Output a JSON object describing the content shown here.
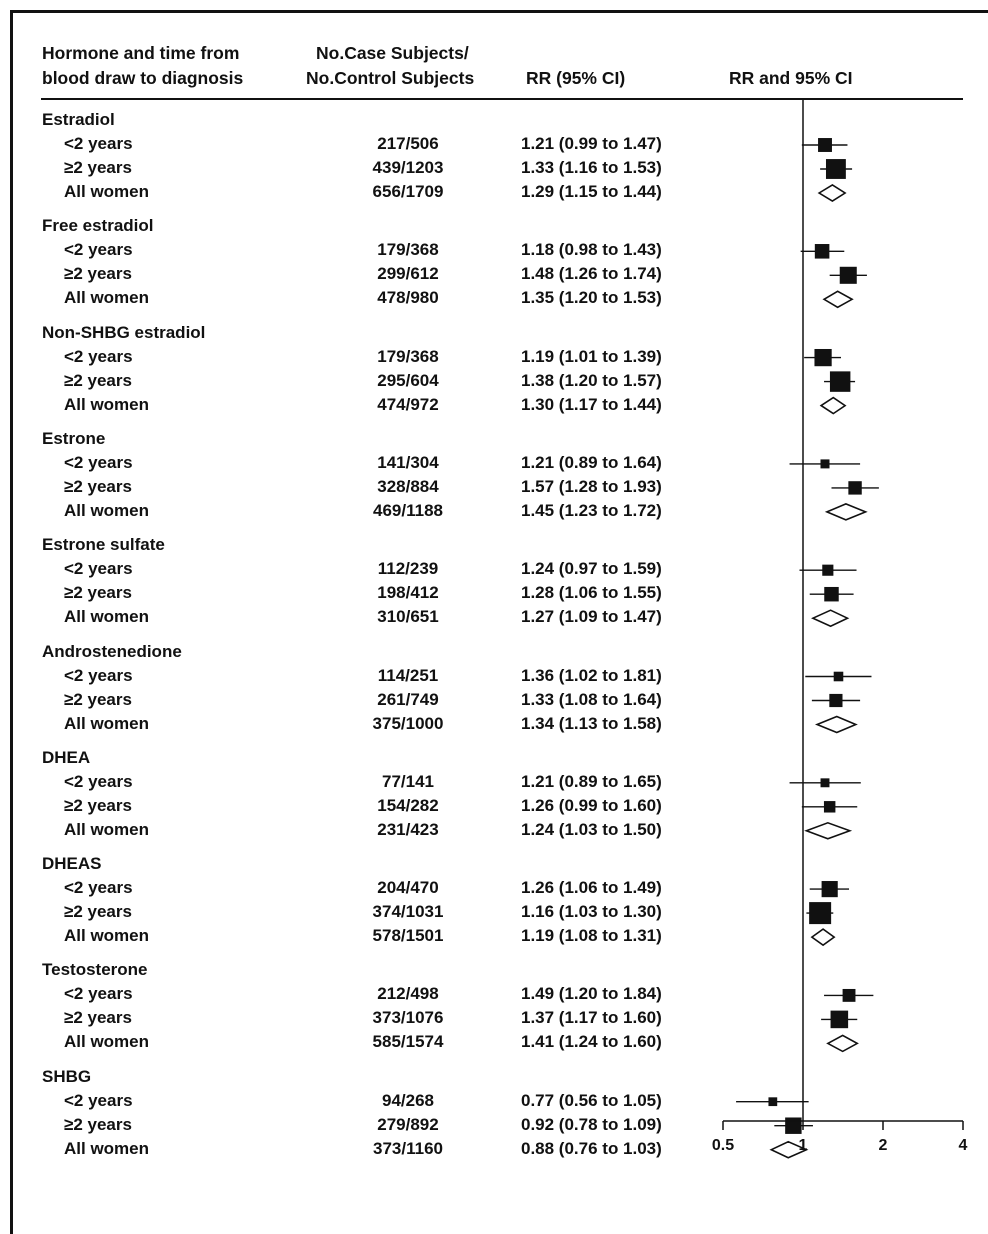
{
  "header": {
    "col1_line1": "Hormone and time from",
    "col1_line2": "blood draw to diagnosis",
    "col2_line1": "No.Case Subjects/",
    "col2_line2": "No.Control Subjects",
    "col3": "RR (95% CI)",
    "col4": "RR and 95% CI"
  },
  "chart_data": {
    "type": "forest",
    "x_axis": {
      "scale": "log",
      "range": [
        0.5,
        4
      ],
      "ticks": [
        "0.5",
        "1",
        "2",
        "4"
      ],
      "reference_line": 1
    },
    "groups": [
      {
        "name": "Estradiol",
        "rows": [
          {
            "label": "<2 years",
            "ratio": "217/506",
            "rr_text": "1.21 (0.99 to 1.47)",
            "rr": 1.21,
            "lo": 0.99,
            "hi": 1.47,
            "kind": "square"
          },
          {
            "label": "≥2 years",
            "ratio": "439/1203",
            "rr_text": "1.33 (1.16 to 1.53)",
            "rr": 1.33,
            "lo": 1.16,
            "hi": 1.53,
            "kind": "square"
          },
          {
            "label": "All women",
            "ratio": "656/1709",
            "rr_text": "1.29 (1.15 to 1.44)",
            "rr": 1.29,
            "lo": 1.15,
            "hi": 1.44,
            "kind": "diamond"
          }
        ]
      },
      {
        "name": "Free estradiol",
        "rows": [
          {
            "label": "<2 years",
            "ratio": "179/368",
            "rr_text": "1.18 (0.98 to 1.43)",
            "rr": 1.18,
            "lo": 0.98,
            "hi": 1.43,
            "kind": "square"
          },
          {
            "label": "≥2 years",
            "ratio": "299/612",
            "rr_text": "1.48 (1.26 to 1.74)",
            "rr": 1.48,
            "lo": 1.26,
            "hi": 1.74,
            "kind": "square"
          },
          {
            "label": "All women",
            "ratio": "478/980",
            "rr_text": "1.35 (1.20 to 1.53)",
            "rr": 1.35,
            "lo": 1.2,
            "hi": 1.53,
            "kind": "diamond"
          }
        ]
      },
      {
        "name": "Non-SHBG estradiol",
        "rows": [
          {
            "label": "<2 years",
            "ratio": "179/368",
            "rr_text": "1.19 (1.01 to 1.39)",
            "rr": 1.19,
            "lo": 1.01,
            "hi": 1.39,
            "kind": "square"
          },
          {
            "label": "≥2 years",
            "ratio": "295/604",
            "rr_text": "1.38 (1.20 to 1.57)",
            "rr": 1.38,
            "lo": 1.2,
            "hi": 1.57,
            "kind": "square"
          },
          {
            "label": "All women",
            "ratio": "474/972",
            "rr_text": "1.30 (1.17 to 1.44)",
            "rr": 1.3,
            "lo": 1.17,
            "hi": 1.44,
            "kind": "diamond"
          }
        ]
      },
      {
        "name": "Estrone",
        "rows": [
          {
            "label": "<2 years",
            "ratio": "141/304",
            "rr_text": "1.21 (0.89 to 1.64)",
            "rr": 1.21,
            "lo": 0.89,
            "hi": 1.64,
            "kind": "square"
          },
          {
            "label": "≥2 years",
            "ratio": "328/884",
            "rr_text": "1.57 (1.28 to 1.93)",
            "rr": 1.57,
            "lo": 1.28,
            "hi": 1.93,
            "kind": "square"
          },
          {
            "label": "All women",
            "ratio": "469/1188",
            "rr_text": "1.45 (1.23 to 1.72)",
            "rr": 1.45,
            "lo": 1.23,
            "hi": 1.72,
            "kind": "diamond"
          }
        ]
      },
      {
        "name": "Estrone sulfate",
        "rows": [
          {
            "label": "<2 years",
            "ratio": "112/239",
            "rr_text": "1.24 (0.97 to 1.59)",
            "rr": 1.24,
            "lo": 0.97,
            "hi": 1.59,
            "kind": "square"
          },
          {
            "label": "≥2 years",
            "ratio": "198/412",
            "rr_text": "1.28 (1.06 to 1.55)",
            "rr": 1.28,
            "lo": 1.06,
            "hi": 1.55,
            "kind": "square"
          },
          {
            "label": "All women",
            "ratio": "310/651",
            "rr_text": "1.27 (1.09 to 1.47)",
            "rr": 1.27,
            "lo": 1.09,
            "hi": 1.47,
            "kind": "diamond"
          }
        ]
      },
      {
        "name": "Androstenedione",
        "rows": [
          {
            "label": "<2 years",
            "ratio": "114/251",
            "rr_text": "1.36 (1.02 to 1.81)",
            "rr": 1.36,
            "lo": 1.02,
            "hi": 1.81,
            "kind": "square"
          },
          {
            "label": "≥2 years",
            "ratio": "261/749",
            "rr_text": "1.33 (1.08 to 1.64)",
            "rr": 1.33,
            "lo": 1.08,
            "hi": 1.64,
            "kind": "square"
          },
          {
            "label": "All women",
            "ratio": "375/1000",
            "rr_text": "1.34 (1.13 to 1.58)",
            "rr": 1.34,
            "lo": 1.13,
            "hi": 1.58,
            "kind": "diamond"
          }
        ]
      },
      {
        "name": "DHEA",
        "rows": [
          {
            "label": "<2 years",
            "ratio": "77/141",
            "rr_text": "1.21 (0.89 to 1.65)",
            "rr": 1.21,
            "lo": 0.89,
            "hi": 1.65,
            "kind": "square"
          },
          {
            "label": "≥2 years",
            "ratio": "154/282",
            "rr_text": "1.26 (0.99 to 1.60)",
            "rr": 1.26,
            "lo": 0.99,
            "hi": 1.6,
            "kind": "square"
          },
          {
            "label": "All women",
            "ratio": "231/423",
            "rr_text": "1.24 (1.03 to 1.50)",
            "rr": 1.24,
            "lo": 1.03,
            "hi": 1.5,
            "kind": "diamond"
          }
        ]
      },
      {
        "name": "DHEAS",
        "rows": [
          {
            "label": "<2 years",
            "ratio": "204/470",
            "rr_text": "1.26 (1.06 to 1.49)",
            "rr": 1.26,
            "lo": 1.06,
            "hi": 1.49,
            "kind": "square"
          },
          {
            "label": "≥2 years",
            "ratio": "374/1031",
            "rr_text": "1.16 (1.03 to 1.30)",
            "rr": 1.16,
            "lo": 1.03,
            "hi": 1.3,
            "kind": "square"
          },
          {
            "label": "All women",
            "ratio": "578/1501",
            "rr_text": "1.19 (1.08 to 1.31)",
            "rr": 1.19,
            "lo": 1.08,
            "hi": 1.31,
            "kind": "diamond"
          }
        ]
      },
      {
        "name": "Testosterone",
        "rows": [
          {
            "label": "<2 years",
            "ratio": "212/498",
            "rr_text": "1.49 (1.20 to 1.84)",
            "rr": 1.49,
            "lo": 1.2,
            "hi": 1.84,
            "kind": "square"
          },
          {
            "label": "≥2 years",
            "ratio": "373/1076",
            "rr_text": "1.37 (1.17 to 1.60)",
            "rr": 1.37,
            "lo": 1.17,
            "hi": 1.6,
            "kind": "square"
          },
          {
            "label": "All women",
            "ratio": "585/1574",
            "rr_text": "1.41 (1.24 to 1.60)",
            "rr": 1.41,
            "lo": 1.24,
            "hi": 1.6,
            "kind": "diamond"
          }
        ]
      },
      {
        "name": "SHBG",
        "rows": [
          {
            "label": "<2 years",
            "ratio": "94/268",
            "rr_text": "0.77 (0.56 to 1.05)",
            "rr": 0.77,
            "lo": 0.56,
            "hi": 1.05,
            "kind": "square"
          },
          {
            "label": "≥2 years",
            "ratio": "279/892",
            "rr_text": "0.92 (0.78 to 1.09)",
            "rr": 0.92,
            "lo": 0.78,
            "hi": 1.09,
            "kind": "square"
          },
          {
            "label": "All women",
            "ratio": "373/1160",
            "rr_text": "0.88 (0.76 to 1.03)",
            "rr": 0.88,
            "lo": 0.76,
            "hi": 1.03,
            "kind": "diamond"
          }
        ]
      }
    ]
  }
}
